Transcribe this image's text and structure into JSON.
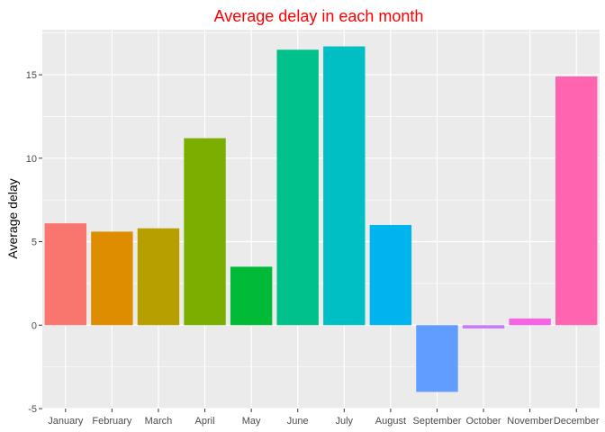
{
  "chart_data": {
    "type": "bar",
    "title": "Average delay in each month",
    "xlabel": "",
    "ylabel": "Average delay",
    "categories": [
      "January",
      "February",
      "March",
      "April",
      "May",
      "June",
      "July",
      "August",
      "September",
      "October",
      "November",
      "December"
    ],
    "values": [
      6.1,
      5.6,
      5.8,
      11.2,
      3.5,
      16.5,
      16.7,
      6.0,
      -4.0,
      -0.2,
      0.4,
      14.9
    ],
    "colors": [
      "#F8766D",
      "#DE8C00",
      "#B79F00",
      "#7CAE00",
      "#00BA38",
      "#00C08B",
      "#00BFC4",
      "#00B4F0",
      "#619CFF",
      "#C77CFF",
      "#F564E3",
      "#FF64B0"
    ],
    "ylim": [
      -5,
      17.7
    ],
    "yticks": [
      -5,
      0,
      5,
      10,
      15
    ],
    "ytick_labels": [
      "-5",
      "0",
      "5",
      "10",
      "15"
    ],
    "grid": true,
    "legend": "none",
    "title_color": "#FF0000",
    "panel_background": "#EBEBEB",
    "grid_color": "#FFFFFF"
  }
}
